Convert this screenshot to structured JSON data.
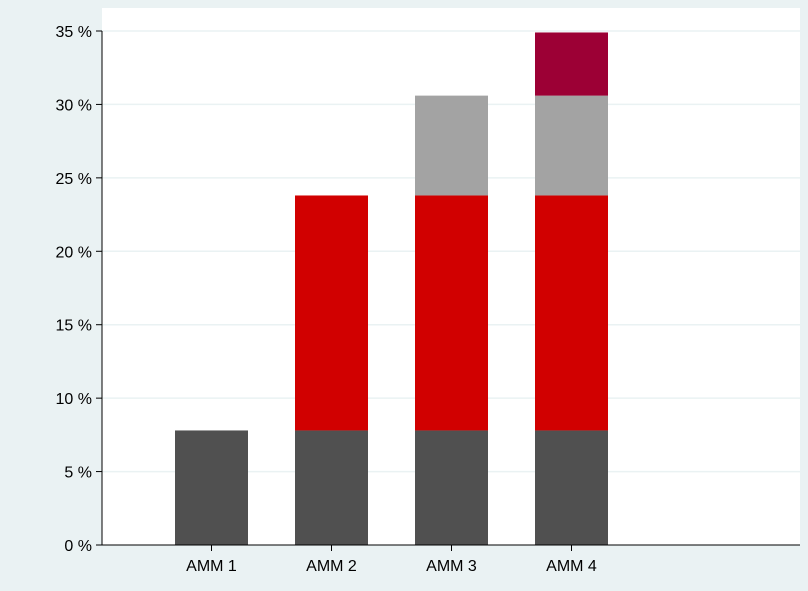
{
  "chart_data": {
    "type": "bar",
    "stacked": true,
    "categories": [
      "AMM 1",
      "AMM 2",
      "AMM 3",
      "AMM 4"
    ],
    "series": [
      {
        "values": [
          7.8,
          7.8,
          7.8,
          7.8
        ],
        "color": "#505050"
      },
      {
        "values": [
          0,
          16.0,
          16.0,
          16.0
        ],
        "color": "#d10000"
      },
      {
        "values": [
          0,
          0,
          6.8,
          6.8
        ],
        "color": "#a3a3a3"
      },
      {
        "values": [
          0,
          0,
          0,
          4.3
        ],
        "color": "#9c0035"
      }
    ],
    "ylim": [
      0,
      35
    ],
    "yticks": [
      0,
      5,
      10,
      15,
      20,
      25,
      30,
      35
    ],
    "ytick_labels": [
      "0 %",
      "5 %",
      "10 %",
      "15 %",
      "20 %",
      "25 %",
      "30 %",
      "35 %"
    ],
    "grid": true,
    "legend": false,
    "colors": {
      "outer_background": "#eaf2f3",
      "plot_background": "#ffffff",
      "gridline": "#eaf2f3"
    }
  }
}
